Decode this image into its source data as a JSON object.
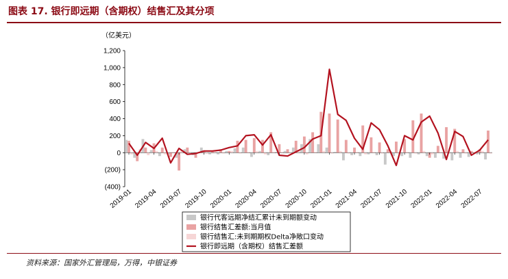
{
  "title": "图表 17. 银行即远期（含期权）结售汇及其分项",
  "source": "资料来源：国家外汇管理局，万得，中银证券",
  "colors": {
    "title": "#8b0a14",
    "series_grey": "#c8c8c8",
    "series_pink": "#e9a3a3",
    "series_lightpink": "#f6d6d6",
    "series_line": "#b3121f"
  },
  "chart_data": {
    "type": "bar",
    "unit_label": "（亿美元）",
    "ylim": [
      -400,
      1200
    ],
    "yticks": [
      "1,200",
      "1,000",
      "800",
      "600",
      "400",
      "200",
      "0",
      "(200)",
      "(400)"
    ],
    "ytick_values": [
      1200,
      1000,
      800,
      600,
      400,
      200,
      0,
      -200,
      -400
    ],
    "xtick_labels": [
      "2019-01",
      "2019-04",
      "2019-07",
      "2019-10",
      "2020-01",
      "2020-04",
      "2020-07",
      "2020-10",
      "2021-01",
      "2021-04",
      "2021-07",
      "2021-10",
      "2022-01",
      "2022-04",
      "2022-07"
    ],
    "x": [
      "2019-01",
      "2019-02",
      "2019-03",
      "2019-04",
      "2019-05",
      "2019-06",
      "2019-07",
      "2019-08",
      "2019-09",
      "2019-10",
      "2019-11",
      "2019-12",
      "2020-01",
      "2020-02",
      "2020-03",
      "2020-04",
      "2020-05",
      "2020-06",
      "2020-07",
      "2020-08",
      "2020-09",
      "2020-10",
      "2020-11",
      "2020-12",
      "2021-01",
      "2021-02",
      "2021-03",
      "2021-04",
      "2021-05",
      "2021-06",
      "2021-07",
      "2021-08",
      "2021-09",
      "2021-10",
      "2021-11",
      "2021-12",
      "2022-01",
      "2022-02",
      "2022-03",
      "2022-04",
      "2022-05",
      "2022-06",
      "2022-07",
      "2022-08"
    ],
    "series": [
      {
        "name": "银行代客远期净结汇累计未到期额变动",
        "type": "bar",
        "values": [
          150,
          -60,
          160,
          30,
          -40,
          -20,
          -60,
          40,
          -30,
          60,
          -20,
          -20,
          20,
          50,
          60,
          -50,
          20,
          -30,
          10,
          20,
          60,
          100,
          160,
          100,
          60,
          10,
          -90,
          -30,
          -40,
          -20,
          -30,
          -140,
          -40,
          -40,
          -60,
          -20,
          -40,
          -60,
          -70,
          -90,
          -60,
          -50,
          -20,
          -80
        ]
      },
      {
        "name": "银行结售汇差额:当月值",
        "type": "bar",
        "values": [
          140,
          -100,
          60,
          110,
          60,
          -50,
          -210,
          60,
          -60,
          20,
          20,
          40,
          20,
          140,
          150,
          170,
          150,
          240,
          100,
          40,
          140,
          190,
          240,
          480,
          460,
          390,
          150,
          60,
          320,
          180,
          120,
          40,
          130,
          160,
          380,
          460,
          -60,
          80,
          300,
          280,
          40,
          20,
          40,
          260
        ]
      },
      {
        "name": "银行结售汇:未到期期权Delta净敞口变动",
        "type": "bar",
        "values": [
          -20,
          40,
          -30,
          20,
          -20,
          10,
          20,
          -20,
          10,
          -10,
          20,
          -10,
          20,
          -10,
          10,
          20,
          -20,
          10,
          10,
          -10,
          20,
          -20,
          10,
          20,
          -10,
          20,
          -10,
          10,
          -20,
          10,
          -10,
          20,
          -10,
          10,
          -10,
          20,
          -20,
          10,
          -10,
          20,
          -10,
          10,
          20,
          -10
        ]
      },
      {
        "name": "银行即远期（含期权）结售汇差额",
        "type": "line",
        "values": [
          110,
          -30,
          120,
          50,
          170,
          -120,
          50,
          -20,
          -10,
          20,
          20,
          30,
          60,
          80,
          200,
          210,
          90,
          210,
          -30,
          -40,
          10,
          60,
          160,
          200,
          980,
          450,
          380,
          170,
          40,
          350,
          270,
          80,
          -150,
          200,
          150,
          360,
          430,
          230,
          -80,
          250,
          190,
          -30,
          30,
          150
        ]
      }
    ]
  }
}
